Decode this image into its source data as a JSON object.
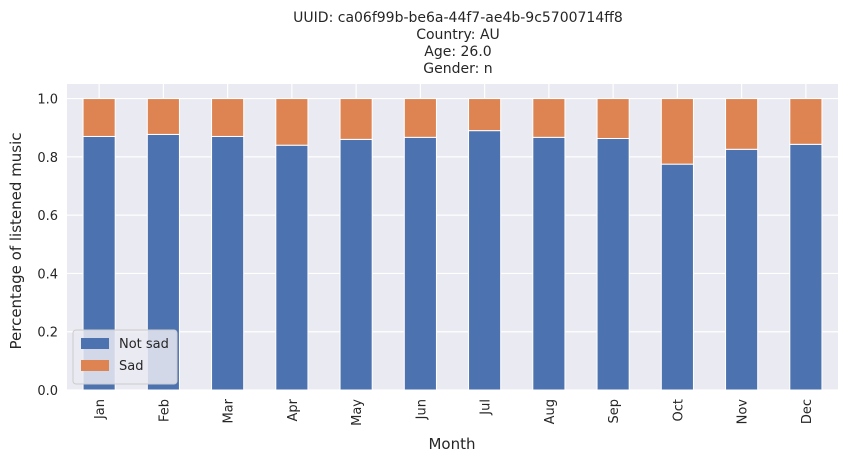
{
  "chart_data": {
    "type": "bar",
    "stacked": true,
    "title_lines": [
      "UUID: ca06f99b-be6a-44f7-ae4b-9c5700714ff8",
      "Country: AU",
      "Age: 26.0",
      "Gender: n"
    ],
    "xlabel": "Month",
    "ylabel": "Percentage of listened music",
    "ylim": [
      0,
      1.05
    ],
    "yticks": [
      0.0,
      0.2,
      0.4,
      0.6,
      0.8,
      1.0
    ],
    "ytick_labels": [
      "0.0",
      "0.2",
      "0.4",
      "0.6",
      "0.8",
      "1.0"
    ],
    "categories": [
      "Jan",
      "Feb",
      "Mar",
      "Apr",
      "May",
      "Jun",
      "Jul",
      "Aug",
      "Sep",
      "Oct",
      "Nov",
      "Dec"
    ],
    "series": [
      {
        "name": "Not sad",
        "color": "#4c72b0",
        "values": [
          0.87,
          0.877,
          0.87,
          0.84,
          0.86,
          0.867,
          0.89,
          0.867,
          0.863,
          0.775,
          0.826,
          0.843
        ]
      },
      {
        "name": "Sad",
        "color": "#dd8452",
        "values": [
          0.13,
          0.123,
          0.13,
          0.16,
          0.14,
          0.133,
          0.11,
          0.133,
          0.137,
          0.225,
          0.174,
          0.157
        ]
      }
    ],
    "grid": true,
    "legend_position": "lower-left",
    "background": "#eaeaf2",
    "grid_color": "#ffffff"
  }
}
